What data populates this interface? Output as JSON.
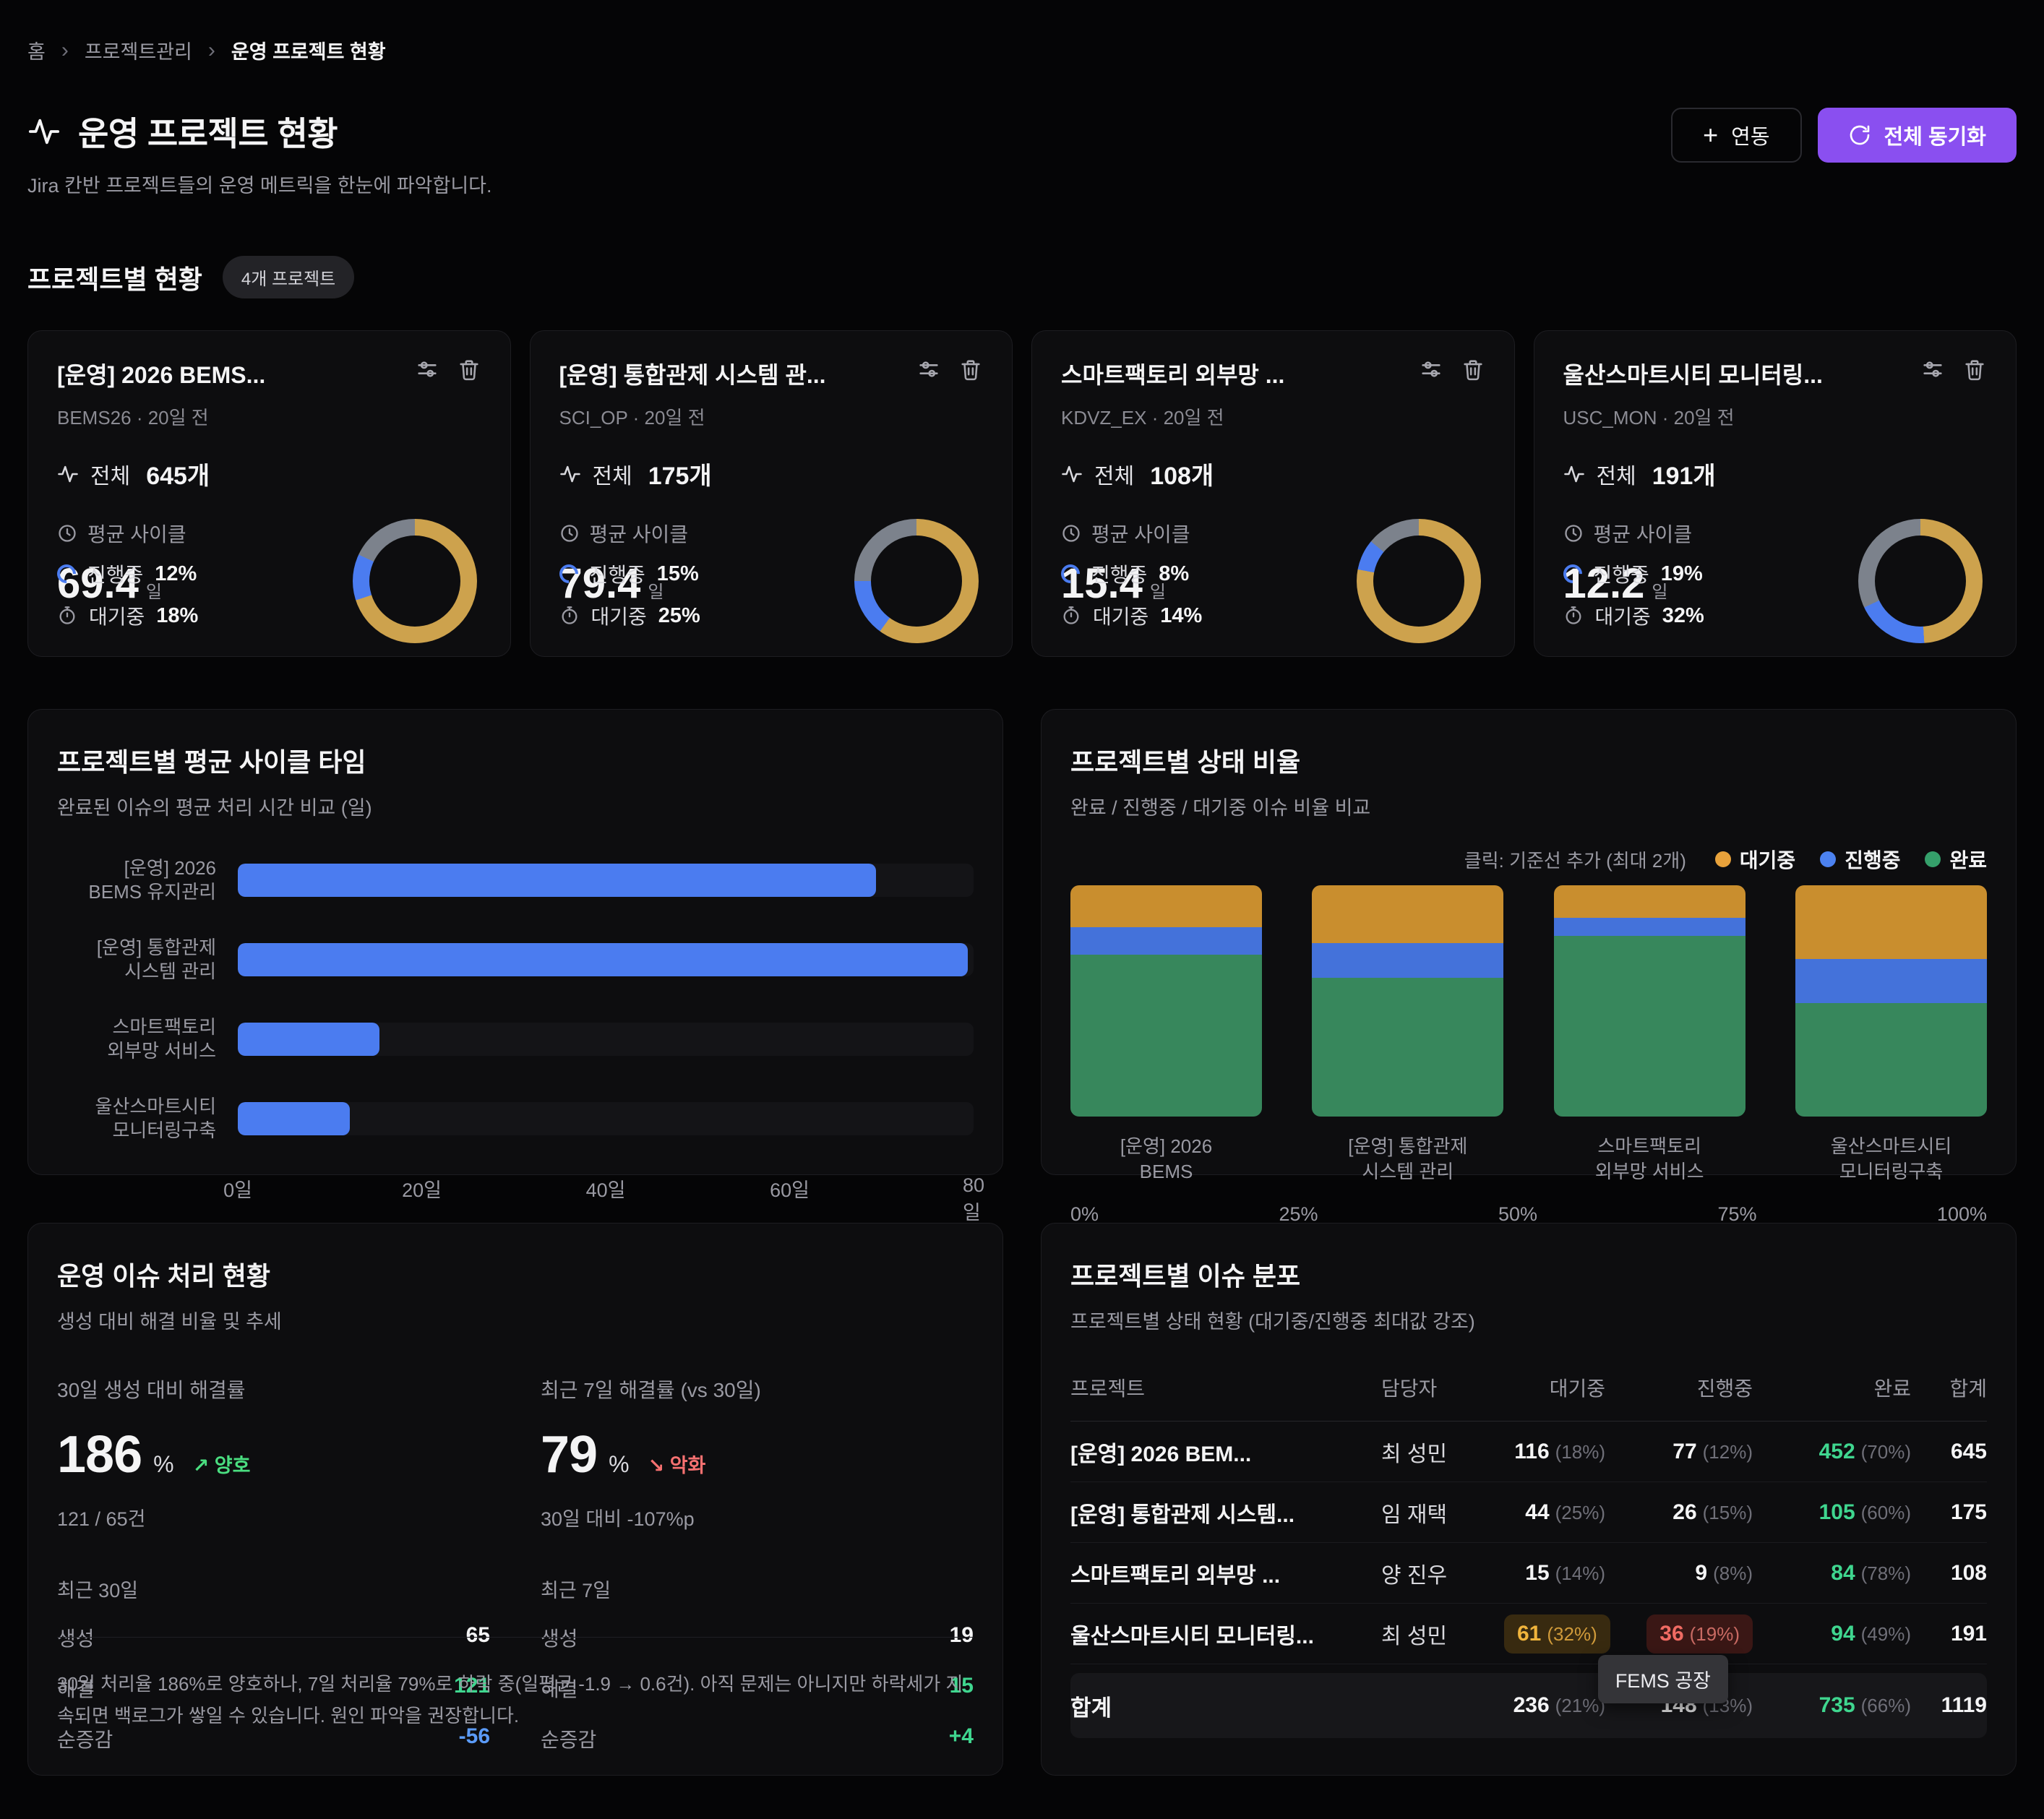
{
  "colors": {
    "accent_purple": "#8a4ff0",
    "donut_gold": "#cda24d",
    "donut_blue": "#4b7cf0",
    "donut_gray": "#7c828c",
    "bar_blue": "#4b7cf0",
    "stack_orange": "#c98e2e",
    "stack_blue": "#4472da",
    "stack_green": "#37875c",
    "text_green": "#3fd68f",
    "text_red": "#f27f72",
    "text_blue": "#5b9bf8"
  },
  "breadcrumb": {
    "home": "홈",
    "separator": "›",
    "section": "프로젝트관리",
    "current": "운영 프로젝트 현황"
  },
  "header": {
    "title": "운영 프로젝트 현황",
    "subtitle": "Jira 칸반 프로젝트들의 운영 메트릭을 한눈에 파악합니다.",
    "link_button": "연동",
    "sync_button": "전체 동기화"
  },
  "section": {
    "title": "프로젝트별 현황",
    "badge": "4개 프로젝트"
  },
  "cards": [
    {
      "title": "[운영] 2026 BEMS...",
      "meta": "BEMS26 · 20일 전",
      "total_label": "전체",
      "total_value": "645개",
      "cycle_label": "평균 사이클",
      "cycle_value": "69.4",
      "cycle_unit": "일",
      "progress_label": "진행중",
      "progress_value": "12%",
      "waiting_label": "대기중",
      "waiting_value": "18%",
      "donut": {
        "done": 70,
        "progress": 12,
        "waiting": 18
      }
    },
    {
      "title": "[운영] 통합관제 시스템 관...",
      "meta": "SCI_OP · 20일 전",
      "total_label": "전체",
      "total_value": "175개",
      "cycle_label": "평균 사이클",
      "cycle_value": "79.4",
      "cycle_unit": "일",
      "progress_label": "진행중",
      "progress_value": "15%",
      "waiting_label": "대기중",
      "waiting_value": "25%",
      "donut": {
        "done": 60,
        "progress": 15,
        "waiting": 25
      }
    },
    {
      "title": "스마트팩토리 외부망 ...",
      "meta": "KDVZ_EX · 20일 전",
      "total_label": "전체",
      "total_value": "108개",
      "cycle_label": "평균 사이클",
      "cycle_value": "15.4",
      "cycle_unit": "일",
      "progress_label": "진행중",
      "progress_value": "8%",
      "waiting_label": "대기중",
      "waiting_value": "14%",
      "donut": {
        "done": 78,
        "progress": 8,
        "waiting": 14
      }
    },
    {
      "title": "울산스마트시티 모니터링...",
      "meta": "USC_MON · 20일 전",
      "total_label": "전체",
      "total_value": "191개",
      "cycle_label": "평균 사이클",
      "cycle_value": "12.2",
      "cycle_unit": "일",
      "progress_label": "진행중",
      "progress_value": "19%",
      "waiting_label": "대기중",
      "waiting_value": "32%",
      "donut": {
        "done": 49,
        "progress": 19,
        "waiting": 32
      }
    }
  ],
  "cycle_panel": {
    "title": "프로젝트별 평균 사이클 타임",
    "subtitle": "완료된 이슈의 평균 처리 시간 비교 (일)",
    "chart_data": {
      "type": "bar",
      "categories": [
        [
          "[운영] 2026",
          "BEMS 유지관리"
        ],
        [
          "[운영] 통합관제",
          "시스템 관리"
        ],
        [
          "스마트팩토리",
          "외부망 서비스"
        ],
        [
          "울산스마트시티",
          "모니터링구축"
        ]
      ],
      "values": [
        69.4,
        79.4,
        15.4,
        12.2
      ],
      "xmax": 80,
      "x_ticks": [
        "0일",
        "20일",
        "40일",
        "60일",
        "80일"
      ],
      "ylabel": "",
      "xlabel": "일"
    }
  },
  "status_panel": {
    "title": "프로젝트별 상태 비율",
    "subtitle": "완료 / 진행중 / 대기중 이슈 비율 비교",
    "note": "클릭: 기준선 추가 (최대 2개)",
    "legend": [
      {
        "label": "대기중"
      },
      {
        "label": "진행중"
      },
      {
        "label": "완료"
      }
    ],
    "chart_data": {
      "type": "stacked-bar",
      "categories": [
        [
          "[운영] 2026",
          "BEMS"
        ],
        [
          "[운영] 통합관제",
          "시스템 관리"
        ],
        [
          "스마트팩토리",
          "외부망 서비스"
        ],
        [
          "울산스마트시티",
          "모니터링구축"
        ]
      ],
      "series": [
        {
          "name": "대기중",
          "values": [
            18,
            25,
            14,
            32
          ]
        },
        {
          "name": "진행중",
          "values": [
            12,
            15,
            8,
            19
          ]
        },
        {
          "name": "완료",
          "values": [
            70,
            60,
            78,
            49
          ]
        }
      ],
      "x_ticks": [
        "0%",
        "25%",
        "50%",
        "75%",
        "100%"
      ]
    }
  },
  "issue_panel": {
    "title": "운영 이슈 처리 현황",
    "subtitle": "생성 대비 해결 비율 및 추세",
    "left": {
      "label": "30일 생성 대비 해결률",
      "value": "186",
      "unit": "%",
      "trend_arrow": "↗",
      "trend": "양호",
      "sub": "121 / 65건",
      "period": "최근 30일",
      "rows": [
        {
          "label": "생성",
          "value": "65"
        },
        {
          "label": "해결",
          "value": "121"
        },
        {
          "label": "순증감",
          "value": "-56"
        }
      ]
    },
    "right": {
      "label": "최근 7일 해결률 (vs 30일)",
      "value": "79",
      "unit": "%",
      "trend_arrow": "↘",
      "trend": "악화",
      "sub": "30일 대비 -107%p",
      "period": "최근 7일",
      "rows": [
        {
          "label": "생성",
          "value": "19"
        },
        {
          "label": "해결",
          "value": "15"
        },
        {
          "label": "순증감",
          "value": "+4"
        }
      ]
    },
    "note": "30일 처리율 186%로 양호하나, 7일 처리율 79%로 하락 중(일평균 -1.9 → 0.6건). 아직 문제는 아니지만 하락세가 지속되면 백로그가 쌓일 수 있습니다. 원인 파악을 권장합니다."
  },
  "dist_panel": {
    "title": "프로젝트별 이슈 분포",
    "subtitle": "프로젝트별 상태 현황 (대기중/진행중 최대값 강조)",
    "headers": [
      "프로젝트",
      "담당자",
      "대기중",
      "진행중",
      "완료",
      "합계"
    ],
    "rows": [
      {
        "project": "[운영] 2026 BEM...",
        "assignee": "최 성민",
        "waiting": "116",
        "waiting_pct": "(18%)",
        "progress": "77",
        "progress_pct": "(12%)",
        "done": "452",
        "done_pct": "(70%)",
        "total": "645"
      },
      {
        "project": "[운영] 통합관제 시스템...",
        "assignee": "임 재택",
        "waiting": "44",
        "waiting_pct": "(25%)",
        "progress": "26",
        "progress_pct": "(15%)",
        "done": "105",
        "done_pct": "(60%)",
        "total": "175"
      },
      {
        "project": "스마트팩토리 외부망 ...",
        "assignee": "양 진우",
        "waiting": "15",
        "waiting_pct": "(14%)",
        "progress": "9",
        "progress_pct": "(8%)",
        "done": "84",
        "done_pct": "(78%)",
        "total": "108"
      },
      {
        "project": "울산스마트시티 모니터링...",
        "assignee": "최 성민",
        "waiting": "61",
        "waiting_pct": "(32%)",
        "progress": "36",
        "progress_pct": "(19%)",
        "done": "94",
        "done_pct": "(49%)",
        "total": "191"
      }
    ],
    "tooltip": "FEMS 공장",
    "total_row": {
      "label": "합계",
      "waiting": "236",
      "waiting_pct": "(21%)",
      "progress": "148",
      "progress_pct": "(13%)",
      "done": "735",
      "done_pct": "(66%)",
      "total": "1119"
    }
  }
}
